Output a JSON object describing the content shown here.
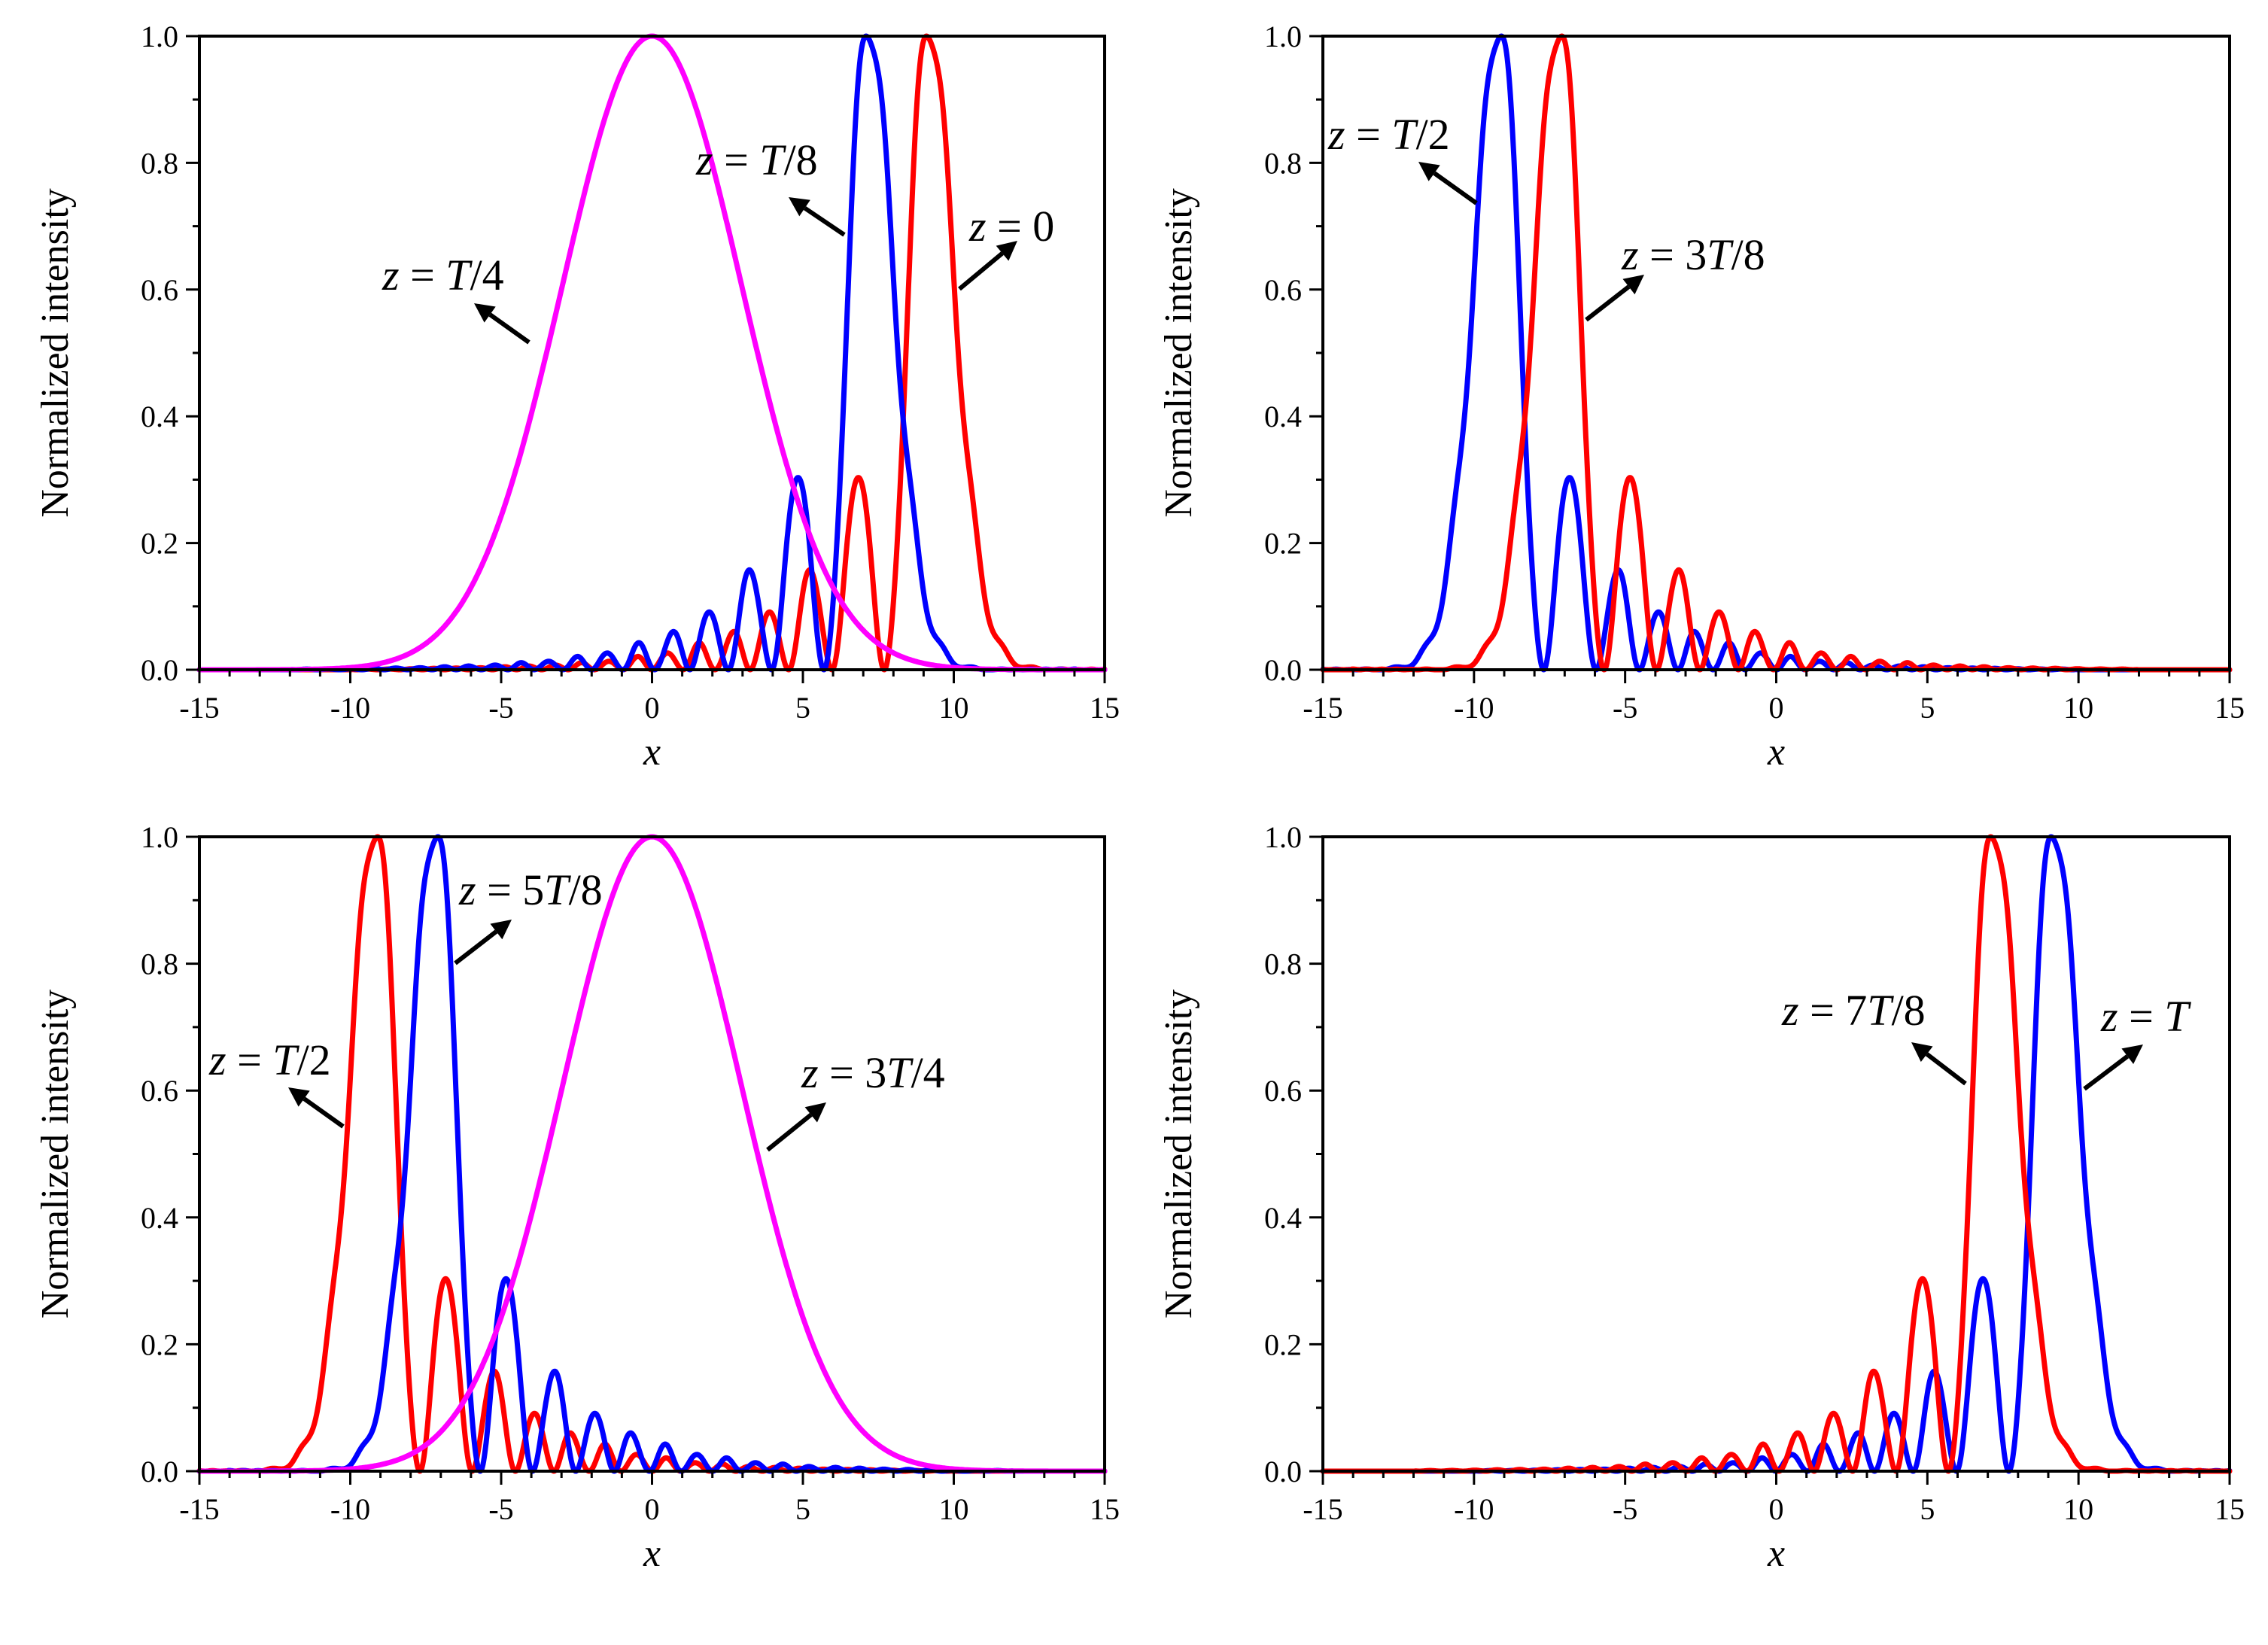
{
  "colors": {
    "red": "#ff0000",
    "blue": "#0000ff",
    "magenta": "#ff00ff",
    "axis": "#000000"
  },
  "chart_data": [
    {
      "type": "line",
      "xlabel": "x",
      "ylabel": "Normalized intensity",
      "xlim": [
        -15,
        15
      ],
      "ylim": [
        0,
        1.0
      ],
      "xticks": [
        "-15",
        "-10",
        "-5",
        "0",
        "5",
        "10",
        "15"
      ],
      "yticks": [
        "0.0",
        "0.2",
        "0.4",
        "0.6",
        "0.8",
        "1.0"
      ],
      "series": [
        {
          "name": "z = 0",
          "color": "red",
          "profile": "airy",
          "peak_x": 9.1,
          "direction": 1
        },
        {
          "name": "z = T/8",
          "color": "blue",
          "profile": "airy",
          "peak_x": 7.1,
          "direction": 1
        },
        {
          "name": "z = T/4",
          "color": "magenta",
          "profile": "gauss",
          "peak_x": 0,
          "width": 4.2
        }
      ],
      "annotations": [
        {
          "prefix": "z",
          "eq": " = ",
          "var": "T",
          "suffix": "/8"
        },
        {
          "prefix": "z",
          "eq": " = ",
          "var": "",
          "suffix": "0"
        },
        {
          "prefix": "z",
          "eq": " = ",
          "var": "T",
          "suffix": "/4"
        }
      ]
    },
    {
      "type": "line",
      "xlabel": "x",
      "ylabel": "Normalized intensity",
      "xlim": [
        -15,
        15
      ],
      "ylim": [
        0,
        1.0
      ],
      "xticks": [
        "-15",
        "-10",
        "-5",
        "0",
        "5",
        "10",
        "15"
      ],
      "yticks": [
        "0.0",
        "0.2",
        "0.4",
        "0.6",
        "0.8",
        "1.0"
      ],
      "series": [
        {
          "name": "z = T/2",
          "color": "blue",
          "profile": "airy",
          "peak_x": -9.1,
          "direction": -1
        },
        {
          "name": "z = 3T/8",
          "color": "red",
          "profile": "airy",
          "peak_x": -7.1,
          "direction": -1
        }
      ],
      "annotations": [
        {
          "prefix": "z",
          "eq": " = ",
          "var": "T",
          "suffix": "/2"
        },
        {
          "prefix": "z",
          "eq": " = 3",
          "var": "T",
          "suffix": "/8"
        }
      ]
    },
    {
      "type": "line",
      "xlabel": "x",
      "ylabel": "Normalized intensity",
      "xlim": [
        -15,
        15
      ],
      "ylim": [
        0,
        1.0
      ],
      "xticks": [
        "-15",
        "-10",
        "-5",
        "0",
        "5",
        "10",
        "15"
      ],
      "yticks": [
        "0.0",
        "0.2",
        "0.4",
        "0.6",
        "0.8",
        "1.0"
      ],
      "series": [
        {
          "name": "z = T/2",
          "color": "red",
          "profile": "airy",
          "peak_x": -9.1,
          "direction": -1
        },
        {
          "name": "z = 5T/8",
          "color": "blue",
          "profile": "airy",
          "peak_x": -7.1,
          "direction": -1
        },
        {
          "name": "z = 3T/4",
          "color": "magenta",
          "profile": "gauss",
          "peak_x": 0,
          "width": 4.2
        }
      ],
      "annotations": [
        {
          "prefix": "z",
          "eq": " = 5",
          "var": "T",
          "suffix": "/8"
        },
        {
          "prefix": "z",
          "eq": " = ",
          "var": "T",
          "suffix": "/2"
        },
        {
          "prefix": "z",
          "eq": " = 3",
          "var": "T",
          "suffix": "/4"
        }
      ]
    },
    {
      "type": "line",
      "xlabel": "x",
      "ylabel": "Normalized intensity",
      "xlim": [
        -15,
        15
      ],
      "ylim": [
        0,
        1.0
      ],
      "xticks": [
        "-15",
        "-10",
        "-5",
        "0",
        "5",
        "10",
        "15"
      ],
      "yticks": [
        "0.0",
        "0.2",
        "0.4",
        "0.6",
        "0.8",
        "1.0"
      ],
      "series": [
        {
          "name": "z = T",
          "color": "blue",
          "profile": "airy",
          "peak_x": 9.1,
          "direction": 1
        },
        {
          "name": "z = 7T/8",
          "color": "red",
          "profile": "airy",
          "peak_x": 7.1,
          "direction": 1
        }
      ],
      "annotations": [
        {
          "prefix": "z",
          "eq": " = 7",
          "var": "T",
          "suffix": "/8"
        },
        {
          "prefix": "z",
          "eq": " = ",
          "var": "",
          "suffix": "T"
        }
      ]
    }
  ]
}
